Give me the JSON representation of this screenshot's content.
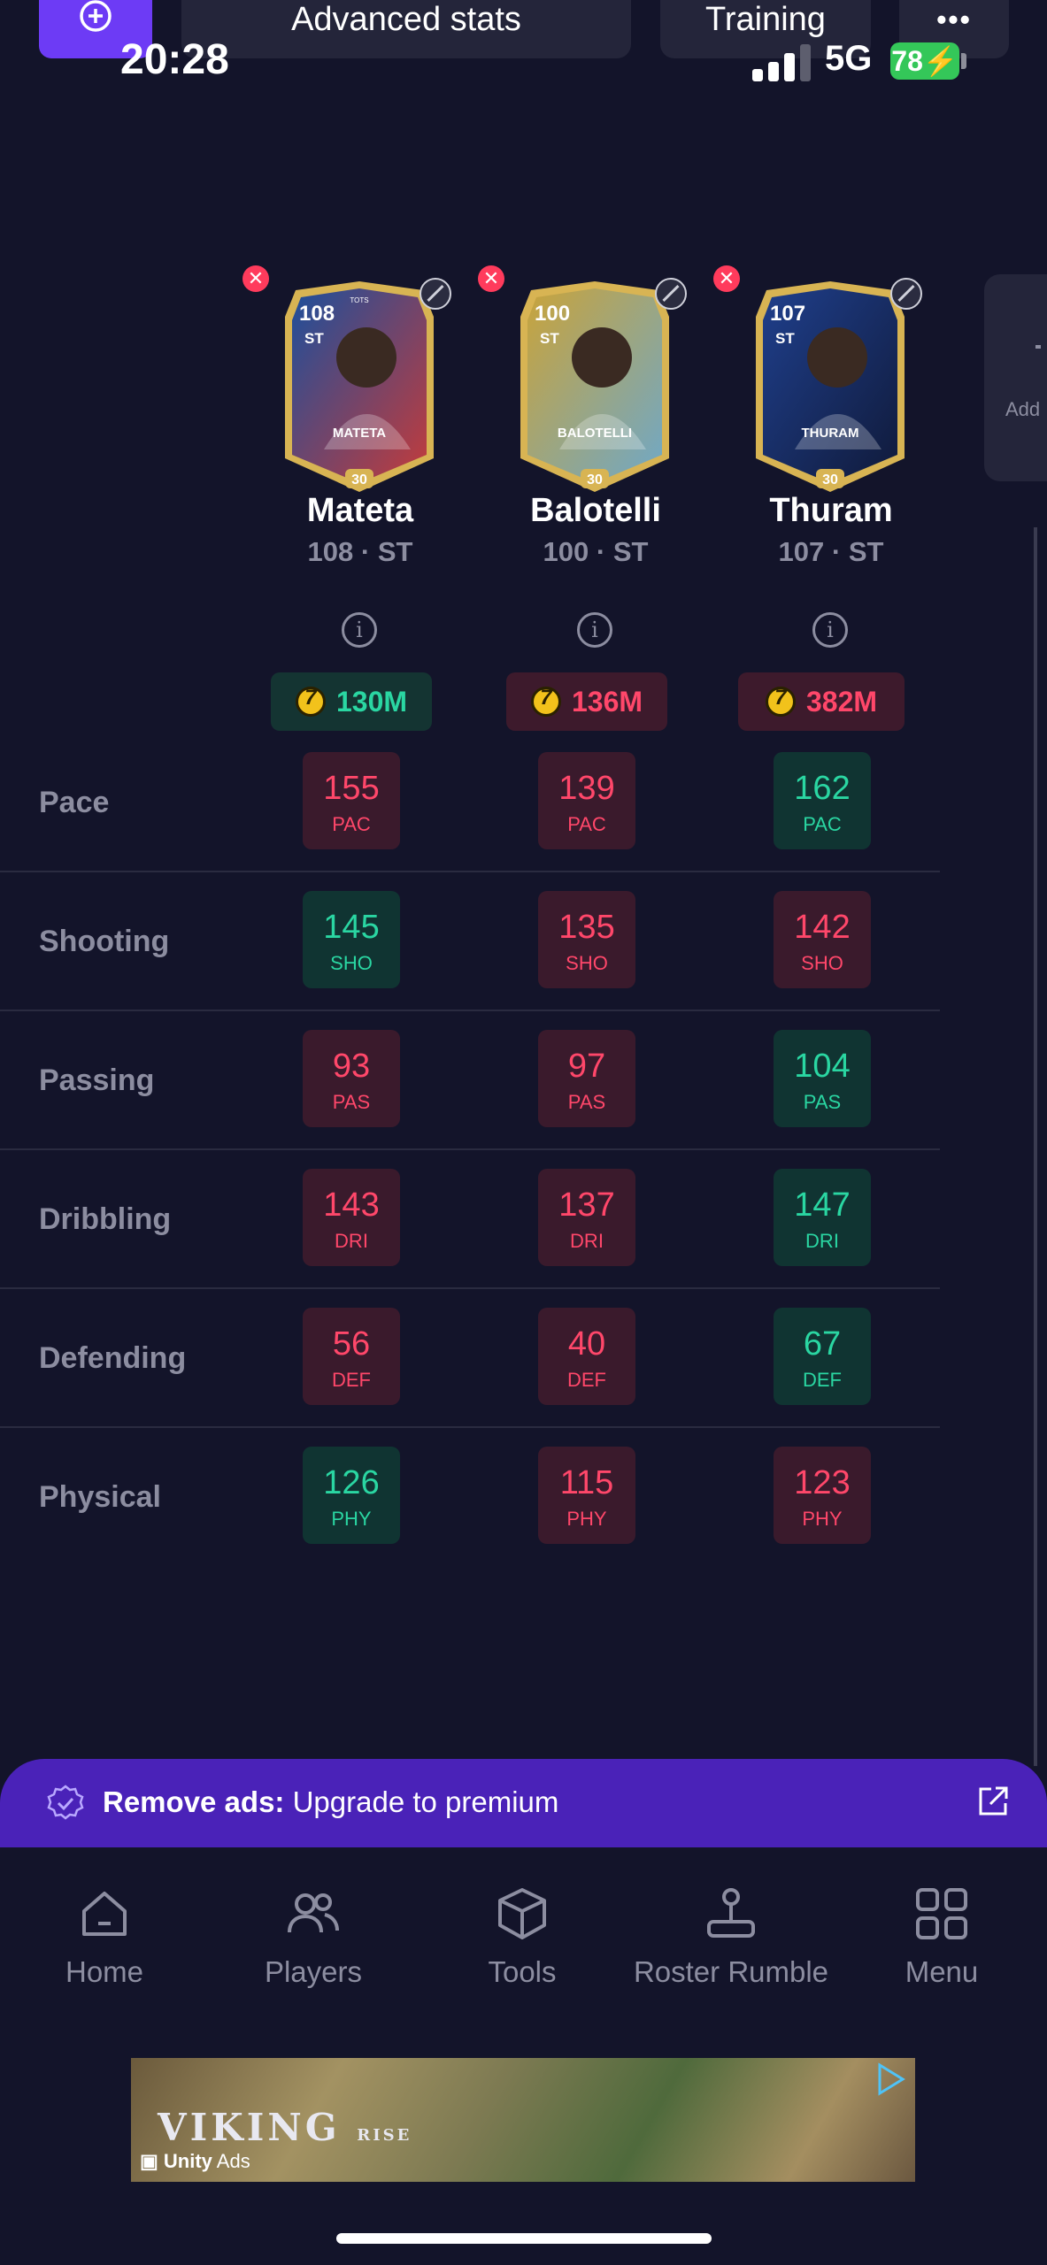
{
  "toolbar": {
    "advanced_label": "Advanced stats",
    "training_label": "Training",
    "more_label": "•••"
  },
  "status": {
    "time": "20:28",
    "network": "5G",
    "battery": "78"
  },
  "side_panel": {
    "label": "Add"
  },
  "players": [
    {
      "name": "Mateta",
      "subtitle": "108 · ST",
      "price": "130M",
      "price_state": "good",
      "card_rating": "108",
      "card_position": "ST",
      "card_name": "MATETA",
      "card_level": "30",
      "card_top": "TOTS",
      "card_colors": [
        "#1c4f9c",
        "#c43b3b"
      ]
    },
    {
      "name": "Balotelli",
      "subtitle": "100 · ST",
      "price": "136M",
      "price_state": "bad",
      "card_rating": "100",
      "card_position": "ST",
      "card_name": "BALOTELLI",
      "card_level": "30",
      "card_top": "",
      "card_colors": [
        "#c9a33a",
        "#6fa8c8"
      ]
    },
    {
      "name": "Thuram",
      "subtitle": "107 · ST",
      "price": "382M",
      "price_state": "bad",
      "card_rating": "107",
      "card_position": "ST",
      "card_name": "THURAM",
      "card_level": "30",
      "card_top": "",
      "card_colors": [
        "#1f3f8c",
        "#101a3a"
      ]
    }
  ],
  "stats": [
    {
      "label": "Pace",
      "abbr": "PAC",
      "values": [
        "155",
        "139",
        "162"
      ],
      "states": [
        "bad",
        "bad",
        "good"
      ]
    },
    {
      "label": "Shooting",
      "abbr": "SHO",
      "values": [
        "145",
        "135",
        "142"
      ],
      "states": [
        "good",
        "bad",
        "bad"
      ]
    },
    {
      "label": "Passing",
      "abbr": "PAS",
      "values": [
        "93",
        "97",
        "104"
      ],
      "states": [
        "bad",
        "bad",
        "good"
      ]
    },
    {
      "label": "Dribbling",
      "abbr": "DRI",
      "values": [
        "143",
        "137",
        "147"
      ],
      "states": [
        "bad",
        "bad",
        "good"
      ]
    },
    {
      "label": "Defending",
      "abbr": "DEF",
      "values": [
        "56",
        "40",
        "67"
      ],
      "states": [
        "bad",
        "bad",
        "good"
      ]
    },
    {
      "label": "Physical",
      "abbr": "PHY",
      "values": [
        "126",
        "115",
        "123"
      ],
      "states": [
        "good",
        "bad",
        "bad"
      ]
    }
  ],
  "promo": {
    "bold": "Remove ads:",
    "text": " Upgrade to premium"
  },
  "nav": [
    {
      "label": "Home",
      "icon": "home-icon"
    },
    {
      "label": "Players",
      "icon": "players-icon"
    },
    {
      "label": "Tools",
      "icon": "box-icon"
    },
    {
      "label": "Roster Rumble",
      "icon": "joystick-icon"
    },
    {
      "label": "Menu",
      "icon": "grid-icon"
    }
  ],
  "ad": {
    "title": "VIKING",
    "subtitle": "RISE",
    "brand": "Unity",
    "brand_suffix": " Ads"
  },
  "colors": {
    "good": "#2ad6a2",
    "bad": "#ff476a",
    "accent": "#6d3bf5",
    "promo": "#4a22b8"
  }
}
